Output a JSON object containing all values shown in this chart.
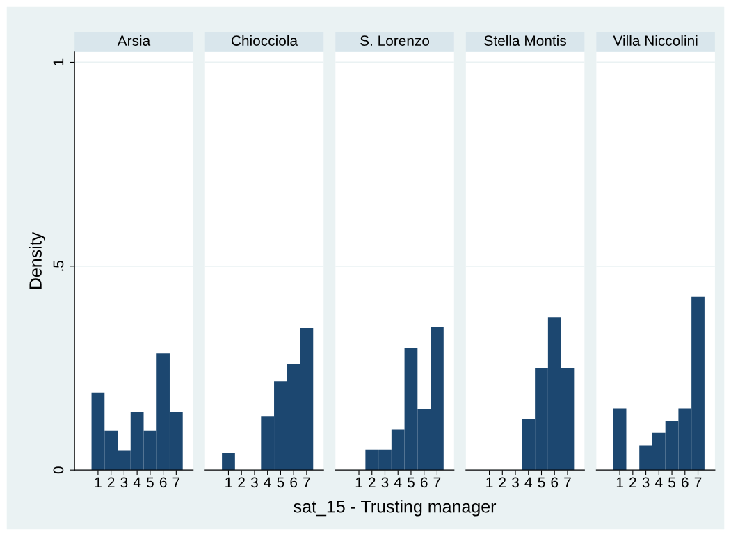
{
  "chart_data": [
    {
      "type": "histogram",
      "title": "Arsia",
      "ylabel": "Density",
      "bins": [
        0.5,
        1.5,
        2.5,
        3.5,
        4.5,
        5.5,
        6.5,
        7.5
      ],
      "values": [
        0.19,
        0.096,
        0.047,
        0.143,
        0.096,
        0.286,
        0.143
      ],
      "color": "#1c4770",
      "xlim": [
        -0.8,
        8.3
      ],
      "xticks": [
        1,
        2,
        3,
        4,
        5,
        6,
        7
      ],
      "ylim": [
        0,
        1.025
      ],
      "yticks": [
        {
          "value": 0,
          "label": "0"
        },
        {
          "value": 0.5,
          "label": ".5"
        },
        {
          "value": 1,
          "label": "1"
        }
      ],
      "grid": "y"
    },
    {
      "type": "histogram",
      "title": "Chiocciola",
      "bins": [
        0.5,
        1.5,
        2.5,
        3.5,
        4.5,
        5.5,
        6.5,
        7.5
      ],
      "values": [
        0.043,
        0,
        0,
        0.131,
        0.218,
        0.261,
        0.348
      ],
      "color": "#1c4770",
      "xlim": [
        -0.8,
        8.3
      ],
      "xticks": [
        1,
        2,
        3,
        4,
        5,
        6,
        7
      ],
      "ylim": [
        0,
        1.025
      ],
      "yticks": [
        0,
        0.5,
        1
      ],
      "grid": "y",
      "tick_labels": "x"
    },
    {
      "type": "histogram",
      "title": "S. Lorenzo",
      "xlabel": "sat_15 - Trusting manager",
      "bins": [
        0.5,
        1.5,
        2.5,
        3.5,
        4.5,
        5.5,
        6.5,
        7.5
      ],
      "values": [
        0,
        0.05,
        0.05,
        0.1,
        0.3,
        0.15,
        0.35
      ],
      "color": "#1c4770",
      "xlim": [
        -0.8,
        8.3
      ],
      "xticks": [
        1,
        2,
        3,
        4,
        5,
        6,
        7
      ],
      "ylim": [
        0,
        1.025
      ],
      "yticks": [
        0,
        0.5,
        1
      ],
      "grid": "y",
      "tick_labels": "x"
    },
    {
      "type": "histogram",
      "title": "Stella Montis",
      "bins": [
        0.5,
        1.5,
        2.5,
        3.5,
        4.5,
        5.5,
        6.5,
        7.5
      ],
      "values": [
        0,
        0,
        0,
        0.125,
        0.25,
        0.375,
        0.25
      ],
      "color": "#1c4770",
      "xlim": [
        -0.8,
        8.3
      ],
      "xticks": [
        1,
        2,
        3,
        4,
        5,
        6,
        7
      ],
      "ylim": [
        0,
        1.025
      ],
      "yticks": [
        0,
        0.5,
        1
      ],
      "grid": "y",
      "tick_labels": "x"
    },
    {
      "type": "histogram",
      "title": "Villa Niccolini",
      "bins": [
        0.5,
        1.5,
        2.5,
        3.5,
        4.5,
        5.5,
        6.5,
        7.5
      ],
      "values": [
        0.151,
        0,
        0.061,
        0.091,
        0.121,
        0.151,
        0.425
      ],
      "color": "#1c4770",
      "xlim": [
        -0.8,
        8.3
      ],
      "xticks": [
        1,
        2,
        3,
        4,
        5,
        6,
        7
      ],
      "ylim": [
        0,
        1.025
      ],
      "yticks": [
        0,
        0.5,
        1
      ],
      "grid": "y",
      "tick_labels": "x"
    }
  ]
}
